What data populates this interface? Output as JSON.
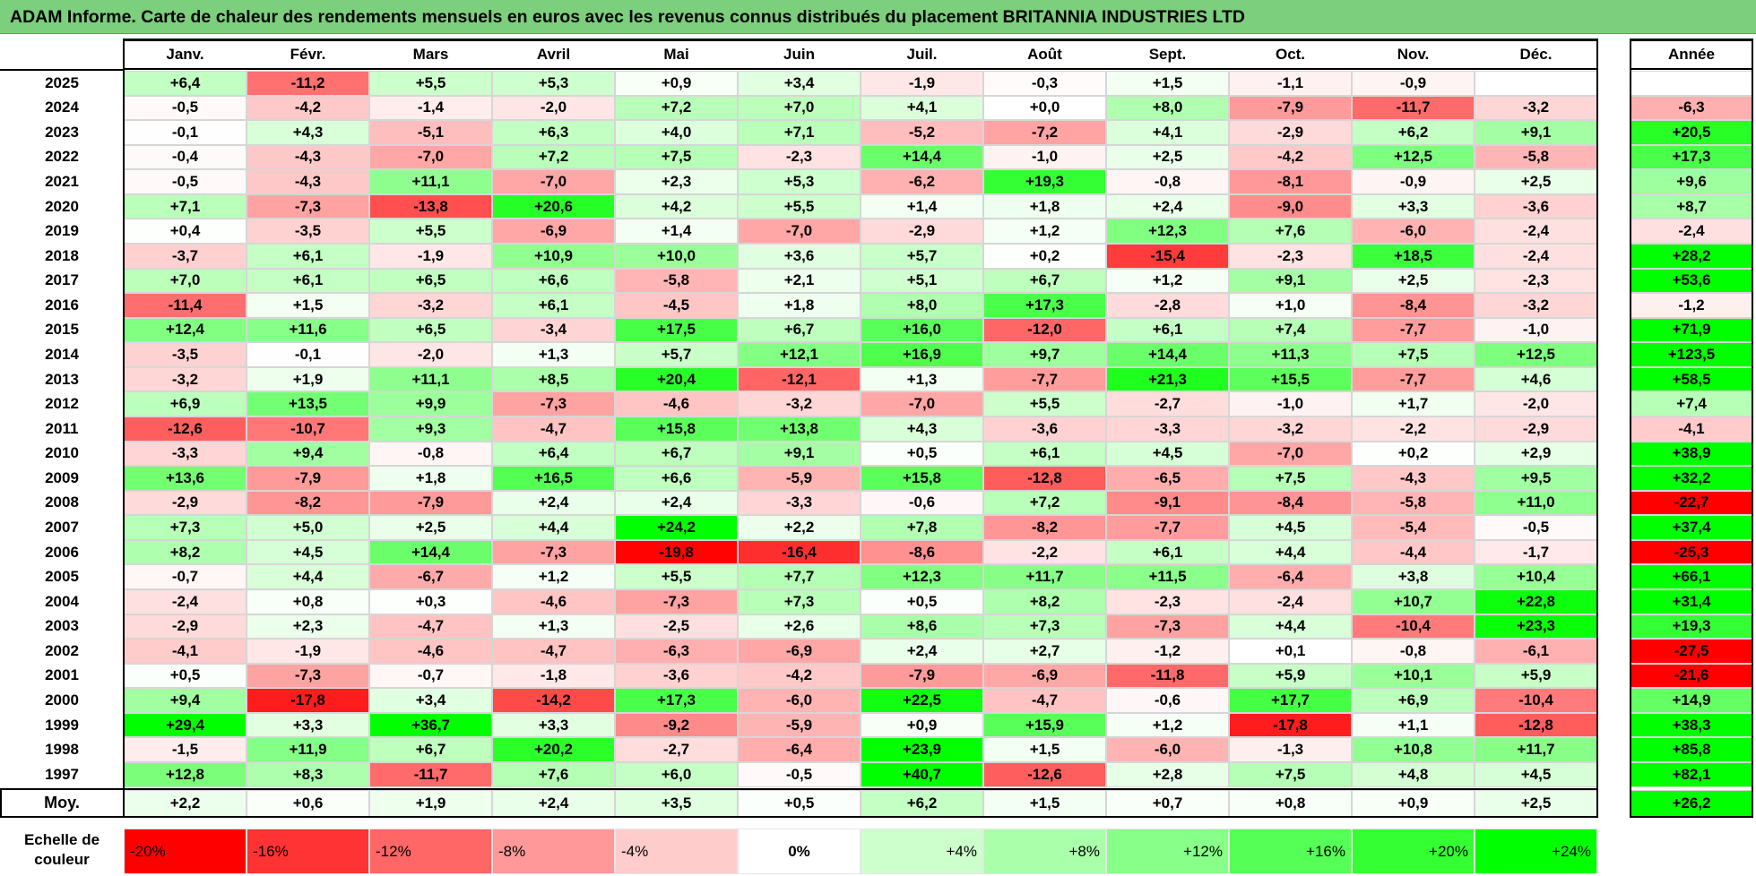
{
  "title": "ADAM Informe. Carte de chaleur des rendements mensuels en euros avec les revenus connus distribués du placement BRITANNIA INDUSTRIES LTD",
  "chart_data": {
    "type": "heatmap",
    "columns": [
      "Janv.",
      "Févr.",
      "Mars",
      "Avril",
      "Mai",
      "Juin",
      "Juil.",
      "Août",
      "Sept.",
      "Oct.",
      "Nov.",
      "Déc."
    ],
    "annual_header": "Année",
    "rows": [
      {
        "year": "2025",
        "values": [
          "+6,4",
          "-11,2",
          "+5,5",
          "+5,3",
          "+0,9",
          "+3,4",
          "-1,9",
          "-0,3",
          "+1,5",
          "-1,1",
          "-0,9",
          ""
        ],
        "annual": ""
      },
      {
        "year": "2024",
        "values": [
          "-0,5",
          "-4,2",
          "-1,4",
          "-2,0",
          "+7,2",
          "+7,0",
          "+4,1",
          "+0,0",
          "+8,0",
          "-7,9",
          "-11,7",
          "-3,2"
        ],
        "annual": "-6,3"
      },
      {
        "year": "2023",
        "values": [
          "-0,1",
          "+4,3",
          "-5,1",
          "+6,3",
          "+4,0",
          "+7,1",
          "-5,2",
          "-7,2",
          "+4,1",
          "-2,9",
          "+6,2",
          "+9,1"
        ],
        "annual": "+20,5"
      },
      {
        "year": "2022",
        "values": [
          "-0,4",
          "-4,3",
          "-7,0",
          "+7,2",
          "+7,5",
          "-2,3",
          "+14,4",
          "-1,0",
          "+2,5",
          "-4,2",
          "+12,5",
          "-5,8"
        ],
        "annual": "+17,3"
      },
      {
        "year": "2021",
        "values": [
          "-0,5",
          "-4,3",
          "+11,1",
          "-7,0",
          "+2,3",
          "+5,3",
          "-6,2",
          "+19,3",
          "-0,8",
          "-8,1",
          "-0,9",
          "+2,5"
        ],
        "annual": "+9,6"
      },
      {
        "year": "2020",
        "values": [
          "+7,1",
          "-7,3",
          "-13,8",
          "+20,6",
          "+4,2",
          "+5,5",
          "+1,4",
          "+1,8",
          "+2,4",
          "-9,0",
          "+3,3",
          "-3,6"
        ],
        "annual": "+8,7"
      },
      {
        "year": "2019",
        "values": [
          "+0,4",
          "-3,5",
          "+5,5",
          "-6,9",
          "+1,4",
          "-7,0",
          "-2,9",
          "+1,2",
          "+12,3",
          "+7,6",
          "-6,0",
          "-2,4"
        ],
        "annual": "-2,4"
      },
      {
        "year": "2018",
        "values": [
          "-3,7",
          "+6,1",
          "-1,9",
          "+10,9",
          "+10,0",
          "+3,6",
          "+5,7",
          "+0,2",
          "-15,4",
          "-2,3",
          "+18,5",
          "-2,4"
        ],
        "annual": "+28,2"
      },
      {
        "year": "2017",
        "values": [
          "+7,0",
          "+6,1",
          "+6,5",
          "+6,6",
          "-5,8",
          "+2,1",
          "+5,1",
          "+6,7",
          "+1,2",
          "+9,1",
          "+2,5",
          "-2,3"
        ],
        "annual": "+53,6"
      },
      {
        "year": "2016",
        "values": [
          "-11,4",
          "+1,5",
          "-3,2",
          "+6,1",
          "-4,5",
          "+1,8",
          "+8,0",
          "+17,3",
          "-2,8",
          "+1,0",
          "-8,4",
          "-3,2"
        ],
        "annual": "-1,2"
      },
      {
        "year": "2015",
        "values": [
          "+12,4",
          "+11,6",
          "+6,5",
          "-3,4",
          "+17,5",
          "+6,7",
          "+16,0",
          "-12,0",
          "+6,1",
          "+7,4",
          "-7,7",
          "-1,0"
        ],
        "annual": "+71,9"
      },
      {
        "year": "2014",
        "values": [
          "-3,5",
          "-0,1",
          "-2,0",
          "+1,3",
          "+5,7",
          "+12,1",
          "+16,9",
          "+9,7",
          "+14,4",
          "+11,3",
          "+7,5",
          "+12,5"
        ],
        "annual": "+123,5"
      },
      {
        "year": "2013",
        "values": [
          "-3,2",
          "+1,9",
          "+11,1",
          "+8,5",
          "+20,4",
          "-12,1",
          "+1,3",
          "-7,7",
          "+21,3",
          "+15,5",
          "-7,7",
          "+4,6"
        ],
        "annual": "+58,5"
      },
      {
        "year": "2012",
        "values": [
          "+6,9",
          "+13,5",
          "+9,9",
          "-7,3",
          "-4,6",
          "-3,2",
          "-7,0",
          "+5,5",
          "-2,7",
          "-1,0",
          "+1,7",
          "-2,0"
        ],
        "annual": "+7,4"
      },
      {
        "year": "2011",
        "values": [
          "-12,6",
          "-10,7",
          "+9,3",
          "-4,7",
          "+15,8",
          "+13,8",
          "+4,3",
          "-3,6",
          "-3,3",
          "-3,2",
          "-2,2",
          "-2,9"
        ],
        "annual": "-4,1"
      },
      {
        "year": "2010",
        "values": [
          "-3,3",
          "+9,4",
          "-0,8",
          "+6,4",
          "+6,7",
          "+9,1",
          "+0,5",
          "+6,1",
          "+4,5",
          "-7,0",
          "+0,2",
          "+2,9"
        ],
        "annual": "+38,9"
      },
      {
        "year": "2009",
        "values": [
          "+13,6",
          "-7,9",
          "+1,8",
          "+16,5",
          "+6,6",
          "-5,9",
          "+15,8",
          "-12,8",
          "-6,5",
          "+7,5",
          "-4,3",
          "+9,5"
        ],
        "annual": "+32,2"
      },
      {
        "year": "2008",
        "values": [
          "-2,9",
          "-8,2",
          "-7,9",
          "+2,4",
          "+2,4",
          "-3,3",
          "-0,6",
          "+7,2",
          "-9,1",
          "-8,4",
          "-5,8",
          "+11,0"
        ],
        "annual": "-22,7"
      },
      {
        "year": "2007",
        "values": [
          "+7,3",
          "+5,0",
          "+2,5",
          "+4,4",
          "+24,2",
          "+2,2",
          "+7,8",
          "-8,2",
          "-7,7",
          "+4,5",
          "-5,4",
          "-0,5"
        ],
        "annual": "+37,4"
      },
      {
        "year": "2006",
        "values": [
          "+8,2",
          "+4,5",
          "+14,4",
          "-7,3",
          "-19,8",
          "-16,4",
          "-8,6",
          "-2,2",
          "+6,1",
          "+4,4",
          "-4,4",
          "-1,7"
        ],
        "annual": "-25,3"
      },
      {
        "year": "2005",
        "values": [
          "-0,7",
          "+4,4",
          "-6,7",
          "+1,2",
          "+5,5",
          "+7,7",
          "+12,3",
          "+11,7",
          "+11,5",
          "-6,4",
          "+3,8",
          "+10,4"
        ],
        "annual": "+66,1"
      },
      {
        "year": "2004",
        "values": [
          "-2,4",
          "+0,8",
          "+0,3",
          "-4,6",
          "-7,3",
          "+7,3",
          "+0,5",
          "+8,2",
          "-2,3",
          "-2,4",
          "+10,7",
          "+22,8"
        ],
        "annual": "+31,4"
      },
      {
        "year": "2003",
        "values": [
          "-2,9",
          "+2,3",
          "-4,7",
          "+1,3",
          "-2,5",
          "+2,6",
          "+8,6",
          "+7,3",
          "-7,3",
          "+4,4",
          "-10,4",
          "+23,3"
        ],
        "annual": "+19,3"
      },
      {
        "year": "2002",
        "values": [
          "-4,1",
          "-1,9",
          "-4,6",
          "-4,7",
          "-6,3",
          "-6,9",
          "+2,4",
          "+2,7",
          "-1,2",
          "+0,1",
          "-0,8",
          "-6,1"
        ],
        "annual": "-27,5"
      },
      {
        "year": "2001",
        "values": [
          "+0,5",
          "-7,3",
          "-0,7",
          "-1,8",
          "-3,6",
          "-4,2",
          "-7,9",
          "-6,9",
          "-11,8",
          "+5,9",
          "+10,1",
          "+5,9"
        ],
        "annual": "-21,6"
      },
      {
        "year": "2000",
        "values": [
          "+9,4",
          "-17,8",
          "+3,4",
          "-14,2",
          "+17,3",
          "-6,0",
          "+22,5",
          "-4,7",
          "-0,6",
          "+17,7",
          "+6,9",
          "-10,4"
        ],
        "annual": "+14,9"
      },
      {
        "year": "1999",
        "values": [
          "+29,4",
          "+3,3",
          "+36,7",
          "+3,3",
          "-9,2",
          "-5,9",
          "+0,9",
          "+15,9",
          "+1,2",
          "-17,8",
          "+1,1",
          "-12,8"
        ],
        "annual": "+38,3"
      },
      {
        "year": "1998",
        "values": [
          "-1,5",
          "+11,9",
          "+6,7",
          "+20,2",
          "-2,7",
          "-6,4",
          "+23,9",
          "+1,5",
          "-6,0",
          "-1,3",
          "+10,8",
          "+11,7"
        ],
        "annual": "+85,8"
      },
      {
        "year": "1997",
        "values": [
          "+12,8",
          "+8,3",
          "-11,7",
          "+7,6",
          "+6,0",
          "-0,5",
          "+40,7",
          "-12,6",
          "+2,8",
          "+7,5",
          "+4,8",
          "+4,5"
        ],
        "annual": "+82,1"
      }
    ],
    "average": {
      "label": "Moy.",
      "values": [
        "+2,2",
        "+0,6",
        "+1,9",
        "+2,4",
        "+3,5",
        "+0,5",
        "+6,2",
        "+1,5",
        "+0,7",
        "+0,8",
        "+0,9",
        "+2,5"
      ],
      "annual": "+26,2"
    },
    "color_scale": {
      "label_line1": "Echelle de",
      "label_line2": "couleur",
      "stops": [
        {
          "label": "-20%",
          "value": -20,
          "color": "#ff0000"
        },
        {
          "label": "-16%",
          "value": -16,
          "color": "#ff3333"
        },
        {
          "label": "-12%",
          "value": -12,
          "color": "#ff6666"
        },
        {
          "label": "-8%",
          "value": -8,
          "color": "#ff9999"
        },
        {
          "label": "-4%",
          "value": -4,
          "color": "#ffcccc"
        },
        {
          "label": "0%",
          "value": 0,
          "color": "#ffffff"
        },
        {
          "label": "+4%",
          "value": 4,
          "color": "#ccffcc"
        },
        {
          "label": "+8%",
          "value": 8,
          "color": "#aaffaa"
        },
        {
          "label": "+12%",
          "value": 12,
          "color": "#88ff88"
        },
        {
          "label": "+16%",
          "value": 16,
          "color": "#55ff55"
        },
        {
          "label": "+20%",
          "value": 20,
          "color": "#33ff33"
        },
        {
          "label": "+24%",
          "value": 24,
          "color": "#00ff00"
        }
      ]
    }
  }
}
